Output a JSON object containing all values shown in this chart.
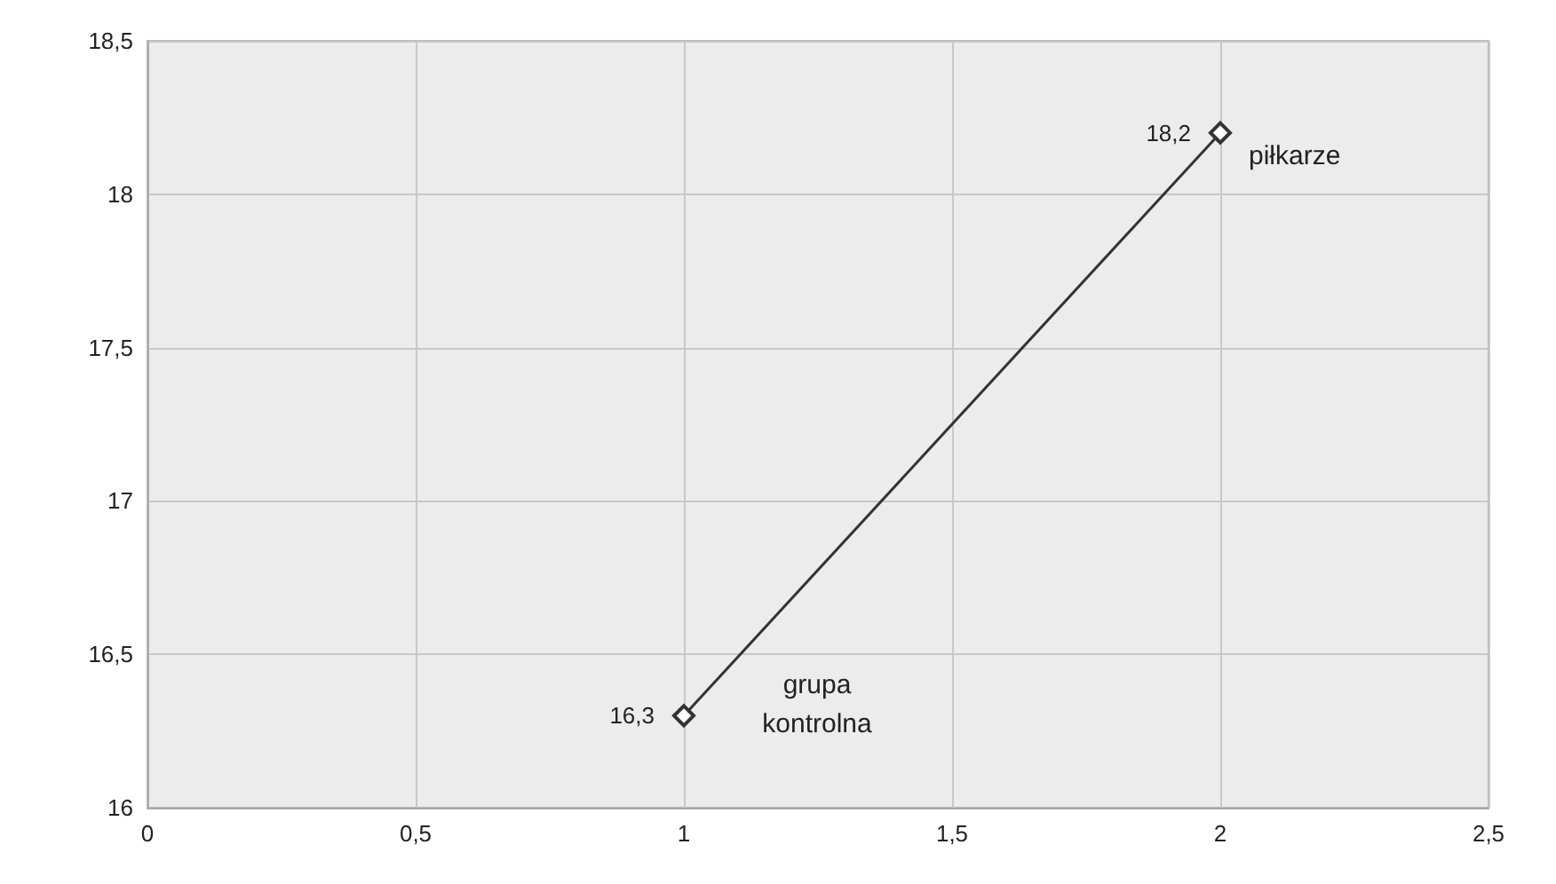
{
  "chart_data": {
    "type": "line",
    "x": [
      1,
      2
    ],
    "series": [
      {
        "color": "#333333",
        "values": [
          16.3,
          18.2
        ],
        "value_labels": [
          "16,3",
          "18,2"
        ]
      }
    ],
    "xlim": [
      0,
      2.5
    ],
    "xticks": [
      0,
      {
        "value": 0.5,
        "label": "0,5"
      },
      1,
      {
        "value": 1.5,
        "label": "1,5"
      },
      2,
      {
        "value": 2.5,
        "label": "2,5"
      }
    ],
    "ylim": [
      16,
      18.5
    ],
    "yticks": [
      16,
      {
        "value": 16.5,
        "label": "16,5"
      },
      17,
      {
        "value": 17.5,
        "label": "17,5"
      },
      18,
      {
        "value": 18.5,
        "label": "18,5"
      }
    ],
    "grid": true,
    "marker": "diamond",
    "line_style": "solid",
    "annotations": [
      {
        "text": "grupa kontrolna",
        "x": 1,
        "y": 16.3
      },
      {
        "text": "piłkarze",
        "x": 2,
        "y": 18.2
      }
    ]
  }
}
